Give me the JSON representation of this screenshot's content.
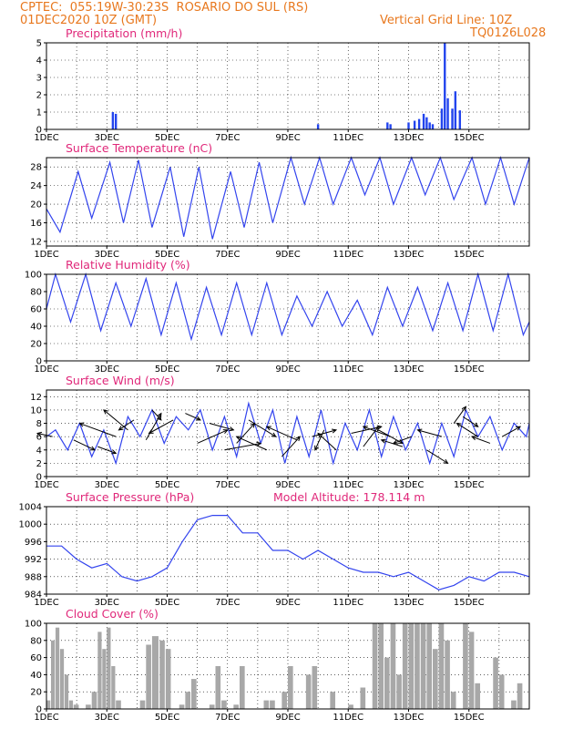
{
  "header": {
    "source": "CPTEC:",
    "coords": "055:19W-30:23S",
    "location": "ROSARIO DO SUL (RS)",
    "datetime": "01DEC2020 10Z (GMT)",
    "grid_line": "Vertical Grid Line: 10Z",
    "model": "TQ0126L028"
  },
  "colors": {
    "header": "#e8781e",
    "title": "#e0287a",
    "line": "#3344ee",
    "bar": "#2244ee",
    "cloud": "#a8a8a8"
  },
  "chart_data": [
    {
      "type": "bar",
      "title": "Precipitation (mm/h)",
      "ylim": [
        0,
        5
      ],
      "yticks": [
        0,
        1,
        2,
        3,
        4,
        5
      ],
      "x_labels": [
        "1DEC",
        "3DEC",
        "5DEC",
        "7DEC",
        "9DEC",
        "11DEC",
        "13DEC",
        "15DEC"
      ],
      "x": [
        2.2,
        2.3,
        9.0,
        11.3,
        11.4,
        12.0,
        12.2,
        12.35,
        12.5,
        12.6,
        12.7,
        12.8,
        13.1,
        13.2,
        13.3,
        13.45,
        13.55,
        13.7
      ],
      "values": [
        1.0,
        0.9,
        0.3,
        0.4,
        0.3,
        0.4,
        0.5,
        0.6,
        0.9,
        0.7,
        0.4,
        0.3,
        1.2,
        5.0,
        1.8,
        1.2,
        2.2,
        1.1
      ]
    },
    {
      "type": "line",
      "title": "Surface Temperature (nC)",
      "ylim": [
        11,
        30
      ],
      "yticks": [
        12,
        16,
        20,
        24,
        28
      ],
      "x_labels": [
        "1DEC",
        "3DEC",
        "5DEC",
        "7DEC",
        "9DEC",
        "11DEC",
        "13DEC",
        "15DEC"
      ],
      "x": [
        0.0,
        0.45,
        1.05,
        1.5,
        2.1,
        2.55,
        3.05,
        3.5,
        4.1,
        4.55,
        5.05,
        5.5,
        6.1,
        6.55,
        7.05,
        7.5,
        8.1,
        8.55,
        9.05,
        9.5,
        10.1,
        10.55,
        11.05,
        11.5,
        12.1,
        12.55,
        13.05,
        13.5,
        14.1,
        14.55,
        15.05,
        15.5,
        16.0
      ],
      "values": [
        19,
        14,
        27,
        17,
        29,
        16,
        29.5,
        15,
        28,
        13,
        28,
        12.5,
        27,
        15,
        29,
        16,
        30,
        20,
        30,
        20,
        30,
        22,
        30,
        20,
        30,
        22,
        30,
        21,
        30,
        20,
        30,
        20,
        30
      ]
    },
    {
      "type": "line",
      "title": "Relative Humidity (%)",
      "ylim": [
        0,
        100
      ],
      "yticks": [
        0,
        20,
        40,
        60,
        80,
        100
      ],
      "x_labels": [
        "1DEC",
        "3DEC",
        "5DEC",
        "7DEC",
        "9DEC",
        "11DEC",
        "13DEC",
        "15DEC"
      ],
      "x": [
        0.0,
        0.3,
        0.8,
        1.3,
        1.8,
        2.3,
        2.8,
        3.3,
        3.8,
        4.3,
        4.8,
        5.3,
        5.8,
        6.3,
        6.8,
        7.3,
        7.8,
        8.3,
        8.8,
        9.3,
        9.8,
        10.3,
        10.8,
        11.3,
        11.8,
        12.3,
        12.8,
        13.3,
        13.8,
        14.3,
        14.8,
        15.3,
        15.8,
        16.0
      ],
      "values": [
        60,
        100,
        45,
        100,
        35,
        90,
        40,
        95,
        30,
        90,
        25,
        85,
        30,
        90,
        30,
        90,
        30,
        75,
        40,
        80,
        40,
        70,
        30,
        85,
        40,
        85,
        35,
        90,
        35,
        100,
        35,
        100,
        30,
        45
      ]
    },
    {
      "type": "line",
      "title": "Surface Wind (m/s)",
      "ylim": [
        0,
        13
      ],
      "yticks": [
        0,
        2,
        4,
        6,
        8,
        10,
        12
      ],
      "x_labels": [
        "1DEC",
        "3DEC",
        "5DEC",
        "7DEC",
        "9DEC",
        "11DEC",
        "13DEC",
        "15DEC"
      ],
      "x": [
        0.0,
        0.3,
        0.7,
        1.1,
        1.5,
        1.9,
        2.3,
        2.7,
        3.1,
        3.5,
        3.9,
        4.3,
        4.7,
        5.1,
        5.5,
        5.9,
        6.3,
        6.7,
        7.1,
        7.5,
        7.9,
        8.3,
        8.7,
        9.1,
        9.5,
        9.9,
        10.3,
        10.7,
        11.1,
        11.5,
        11.9,
        12.3,
        12.7,
        13.1,
        13.5,
        13.9,
        14.3,
        14.7,
        15.1,
        15.5,
        15.9,
        16.0
      ],
      "values": [
        6,
        7,
        4,
        8,
        3,
        7,
        2,
        9,
        6,
        10,
        5,
        9,
        7,
        10,
        4,
        9,
        3,
        11,
        5,
        10,
        2,
        9,
        3,
        10,
        2,
        8,
        4,
        10,
        3,
        9,
        4,
        8,
        2,
        8,
        3,
        10,
        6,
        9,
        4,
        8,
        6,
        8
      ]
    },
    {
      "type": "line",
      "title": "Surface Pressure (hPa)",
      "annotation": "Model Altitude: 178.114 m",
      "ylim": [
        984,
        1004
      ],
      "yticks": [
        984,
        988,
        992,
        996,
        1000,
        1004
      ],
      "x_labels": [
        "1DEC",
        "3DEC",
        "5DEC",
        "7DEC",
        "9DEC",
        "11DEC",
        "13DEC",
        "15DEC"
      ],
      "x": [
        0.0,
        0.5,
        1.0,
        1.5,
        2.0,
        2.5,
        3.0,
        3.5,
        4.0,
        4.5,
        5.0,
        5.5,
        6.0,
        6.5,
        7.0,
        7.5,
        8.0,
        8.5,
        9.0,
        9.5,
        10.0,
        10.5,
        11.0,
        11.5,
        12.0,
        12.5,
        13.0,
        13.5,
        14.0,
        14.5,
        15.0,
        15.5,
        16.0
      ],
      "values": [
        995,
        995,
        992,
        990,
        991,
        988,
        987,
        988,
        990,
        996,
        1001,
        1002,
        1002,
        998,
        998,
        994,
        994,
        992,
        994,
        992,
        990,
        989,
        989,
        988,
        989,
        987,
        985,
        986,
        988,
        987,
        989,
        989,
        988
      ]
    },
    {
      "type": "area",
      "title": "Cloud Cover (%)",
      "ylim": [
        0,
        100
      ],
      "yticks": [
        0,
        20,
        40,
        60,
        80,
        100
      ],
      "x_labels": [
        "1DEC",
        "3DEC",
        "5DEC",
        "7DEC",
        "9DEC",
        "11DEC",
        "13DEC",
        "15DEC"
      ],
      "x": [
        0.0,
        0.15,
        0.3,
        0.45,
        0.6,
        0.75,
        0.9,
        1.1,
        1.3,
        1.5,
        1.7,
        1.85,
        2.0,
        2.15,
        2.3,
        2.5,
        2.7,
        2.9,
        3.1,
        3.3,
        3.5,
        3.75,
        3.95,
        4.15,
        4.4,
        4.6,
        4.8,
        5.0,
        5.2,
        5.4,
        5.6,
        5.8,
        6.0,
        6.2,
        6.4,
        6.6,
        6.8,
        7.0,
        7.2,
        7.4,
        7.6,
        7.8,
        8.0,
        8.2,
        8.4,
        8.6,
        8.8,
        9.0,
        9.2,
        9.4,
        9.6,
        9.8,
        10.0,
        10.2,
        10.4,
        10.6,
        10.8,
        11.0,
        11.2,
        11.4,
        11.6,
        11.8,
        12.0,
        12.2,
        12.4,
        12.6,
        12.8,
        13.0,
        13.2,
        13.4,
        13.6,
        13.8,
        14.0,
        14.2,
        14.4,
        14.6,
        14.8,
        15.0,
        15.2,
        15.4,
        15.6,
        15.8,
        16.0
      ],
      "values": [
        10,
        80,
        95,
        70,
        40,
        10,
        5,
        0,
        5,
        20,
        90,
        70,
        95,
        50,
        10,
        0,
        0,
        0,
        10,
        75,
        85,
        80,
        70,
        0,
        5,
        20,
        35,
        0,
        0,
        5,
        50,
        10,
        0,
        5,
        50,
        0,
        0,
        0,
        10,
        10,
        0,
        20,
        50,
        0,
        0,
        40,
        50,
        0,
        0,
        20,
        0,
        0,
        5,
        0,
        25,
        0,
        100,
        100,
        60,
        100,
        40,
        100,
        100,
        100,
        100,
        100,
        70,
        100,
        80,
        20,
        0,
        100,
        90,
        30,
        0,
        0,
        60,
        40,
        0,
        10,
        30,
        0,
        20
      ]
    }
  ],
  "wind_vectors": {
    "x": [
      0.2,
      0.9,
      1.7,
      2.3,
      2.7,
      2.9,
      3.3,
      3.5,
      4.2,
      4.6,
      5.0,
      5.4,
      5.9,
      6.3,
      6.7,
      7.3,
      7.8,
      8.3,
      8.8,
      9.2,
      9.6,
      10.1,
      10.5,
      11.0,
      11.4,
      11.8,
      12.1,
      12.6,
      13.1,
      13.5,
      13.8,
      14.3,
      14.7,
      15.1
    ],
    "y": [
      6.0,
      5.5,
      4.5,
      6.0,
      7.0,
      8.5,
      5.5,
      10.0,
      8.5,
      9.5,
      5.0,
      8.0,
      4.0,
      5.0,
      8.5,
      4.0,
      3.0,
      5.5,
      6.0,
      7.0,
      4.0,
      6.5,
      4.5,
      7.0,
      6.0,
      4.5,
      6.0,
      4.0,
      6.0,
      8.0,
      9.0,
      6.0,
      5.0,
      6.0
    ],
    "dx": [
      -0.5,
      0.7,
      0.6,
      -1.2,
      -0.8,
      -0.5,
      0.5,
      0.3,
      -0.8,
      0.5,
      1.0,
      0.8,
      1.2,
      0.6,
      0.9,
      -1.0,
      0.6,
      -1.0,
      0.8,
      -0.3,
      -0.6,
      1.0,
      0.5,
      0.8,
      -0.9,
      -0.7,
      -0.6,
      0.7,
      -0.8,
      0.4,
      0.5,
      -0.7,
      -0.6,
      0.6
    ],
    "dy": [
      0.5,
      -1.5,
      -1.0,
      2.0,
      3.0,
      -1.5,
      4.0,
      -1.5,
      -2.0,
      -1.0,
      2.0,
      -1.0,
      1.0,
      3.0,
      -2.5,
      2.0,
      3.0,
      2.0,
      1.0,
      -3.0,
      2.5,
      1.0,
      3.0,
      -2.0,
      1.5,
      1.0,
      -1.0,
      -2.0,
      1.0,
      2.5,
      -1.5,
      2.0,
      1.0,
      1.5
    ]
  }
}
